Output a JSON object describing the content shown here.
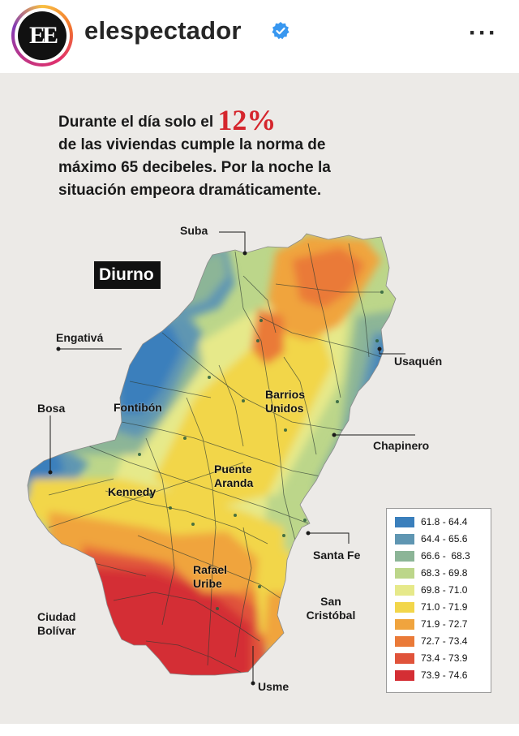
{
  "header": {
    "avatar_text": "EE",
    "username": "elespectador",
    "more_icon": "···"
  },
  "headline": {
    "line1_prefix": "Durante el día solo el ",
    "percent": "12%",
    "line2": "de las viviendas cumple la norma de",
    "line3_pre": "máximo ",
    "line3_bold": "65 decibeles",
    "line3_post": ". Por la noche la",
    "line4": "situación empeora dramáticamente."
  },
  "map": {
    "title": "Diurno",
    "labels": {
      "suba": "Suba",
      "engativa": "Engativá",
      "usaquen": "Usaquén",
      "bosa": "Bosa",
      "fontibon": "Fontibón",
      "barrios_unidos_1": "Barrios",
      "barrios_unidos_2": "Unidos",
      "chapinero": "Chapinero",
      "puente_aranda_1": "Puente",
      "puente_aranda_2": "Aranda",
      "kennedy": "Kennedy",
      "santa_fe": "Santa Fe",
      "rafael_uribe_1": "Rafael",
      "rafael_uribe_2": "Uribe",
      "san_cristobal_1": "San",
      "san_cristobal_2": "Cristóbal",
      "ciudad_bolivar_1": "Ciudad",
      "ciudad_bolivar_2": "Bolívar",
      "usme": "Usme"
    }
  },
  "legend": [
    {
      "label": "61.8 - 64.4",
      "color": "#3a7fbc"
    },
    {
      "label": "64.4 - 65.6",
      "color": "#5f96b2"
    },
    {
      "label": "66.6 -  68.3",
      "color": "#8cb597"
    },
    {
      "label": "68.3 - 69.8",
      "color": "#bcd68a"
    },
    {
      "label": "69.8 - 71.0",
      "color": "#e6e98a"
    },
    {
      "label": "71.0 - 71.9",
      "color": "#f2d64a"
    },
    {
      "label": "71.9 - 72.7",
      "color": "#f0a43e"
    },
    {
      "label": "72.7 - 73.4",
      "color": "#ea7a38"
    },
    {
      "label": "73.4 - 73.9",
      "color": "#e0533a"
    },
    {
      "label": "73.9 - 74.6",
      "color": "#d42e34"
    }
  ]
}
